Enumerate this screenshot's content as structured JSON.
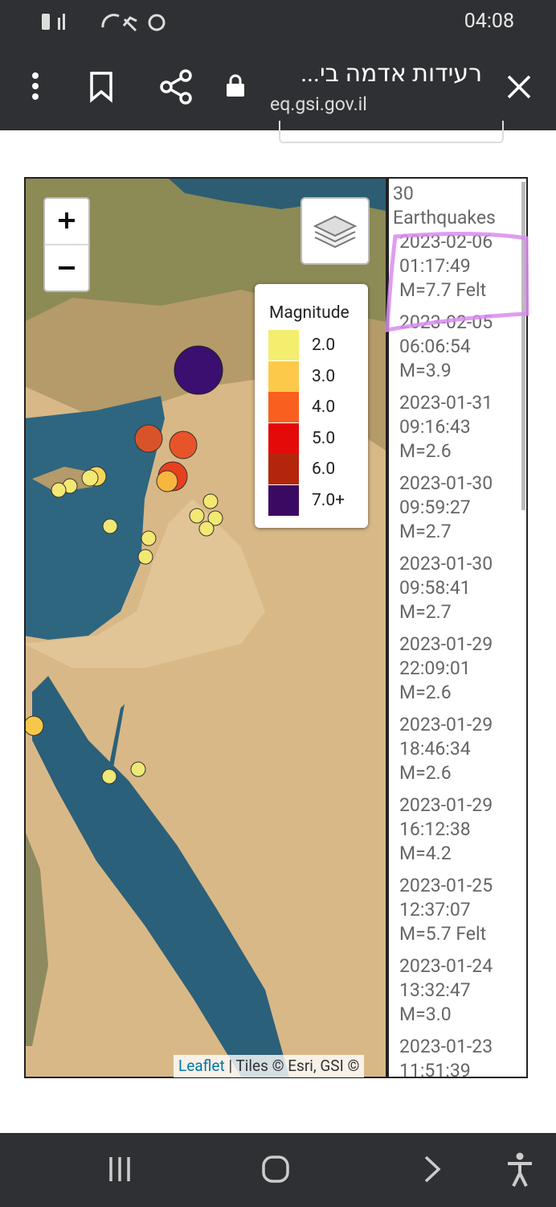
{
  "status_bar": {
    "time": "04:08"
  },
  "browser": {
    "title": "רעידות אדמה בי...",
    "url": "eq.gsi.gov.il"
  },
  "legend": {
    "title": "Magnitude",
    "items": [
      "2.0",
      "3.0",
      "4.0",
      "5.0",
      "6.0",
      "7.0+"
    ]
  },
  "attribution": {
    "link": "Leaflet",
    "text": "| Tiles © Esri, GSI ©"
  },
  "list": {
    "count": 30,
    "label": "Earthquakes",
    "items": [
      {
        "date": "2023-02-06",
        "time": "01:17:49",
        "magnitude": "M=7.7 Felt"
      },
      {
        "date": "2023-02-05",
        "time": "06:06:54",
        "magnitude": "M=3.9"
      },
      {
        "date": "2023-01-31",
        "time": "09:16:43",
        "magnitude": "M=2.6"
      },
      {
        "date": "2023-01-30",
        "time": "09:59:27",
        "magnitude": "M=2.7"
      },
      {
        "date": "2023-01-30",
        "time": "09:58:41",
        "magnitude": "M=2.7"
      },
      {
        "date": "2023-01-29",
        "time": "22:09:01",
        "magnitude": "M=2.6"
      },
      {
        "date": "2023-01-29",
        "time": "18:46:34",
        "magnitude": "M=2.6"
      },
      {
        "date": "2023-01-29",
        "time": "16:12:38",
        "magnitude": "M=4.2"
      },
      {
        "date": "2023-01-25",
        "time": "12:37:07",
        "magnitude": "M=5.7 Felt"
      },
      {
        "date": "2023-01-24",
        "time": "13:32:47",
        "magnitude": "M=3.0"
      },
      {
        "date": "2023-01-23",
        "time": "11:51:39"
      }
    ]
  }
}
